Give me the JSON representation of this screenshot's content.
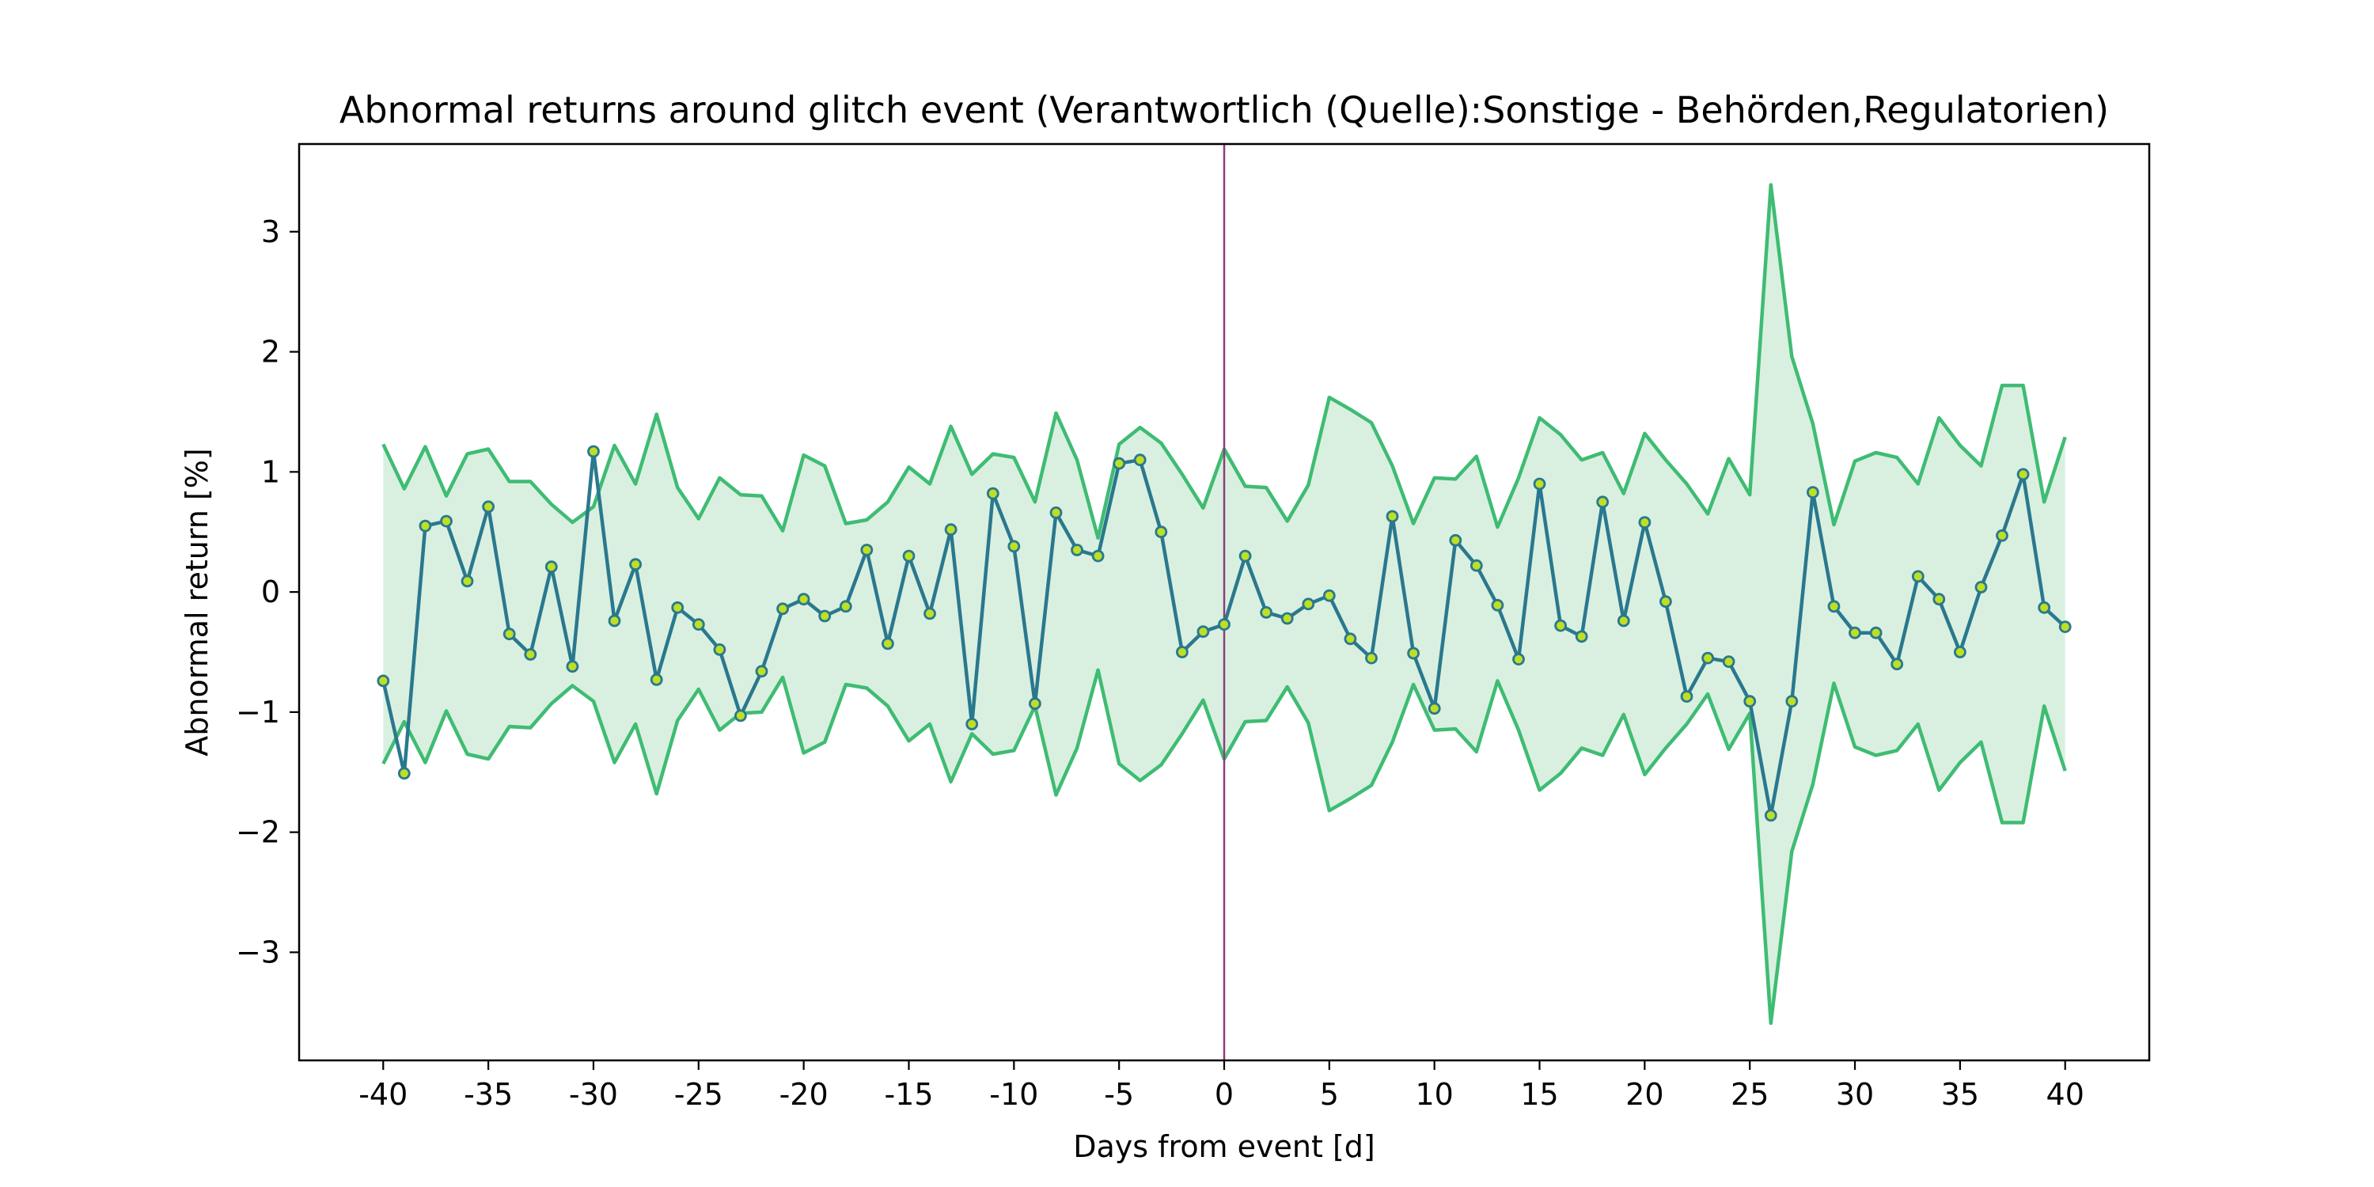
{
  "chart_data": {
    "type": "line",
    "title": "Abnormal returns around glitch event (Verantwortlich (Quelle):Sonstige - Behörden,Regulatorien)",
    "xlabel": "Days from event [d]",
    "ylabel": "Abnormal return [%]",
    "xlim": [
      -44,
      44
    ],
    "ylim": [
      -3.9,
      3.73
    ],
    "xticks": [
      -40,
      -35,
      -30,
      -25,
      -20,
      -15,
      -10,
      -5,
      0,
      5,
      10,
      15,
      20,
      25,
      30,
      35,
      40
    ],
    "yticks": [
      -3,
      -2,
      -1,
      0,
      1,
      2,
      3
    ],
    "event_day": 0,
    "grid": false,
    "legend": "none",
    "colors": {
      "line": "#2a788e",
      "marker_face": "#bddf26",
      "band_line": "#3fbc73",
      "band_fill": "#d9f0e0",
      "event_line": "#8c3e7a",
      "axes": "#000000"
    },
    "x": [
      -40,
      -39,
      -38,
      -37,
      -36,
      -35,
      -34,
      -33,
      -32,
      -31,
      -30,
      -29,
      -28,
      -27,
      -26,
      -25,
      -24,
      -23,
      -22,
      -21,
      -20,
      -19,
      -18,
      -17,
      -16,
      -15,
      -14,
      -13,
      -12,
      -11,
      -10,
      -9,
      -8,
      -7,
      -6,
      -5,
      -4,
      -3,
      -2,
      -1,
      0,
      1,
      2,
      3,
      4,
      5,
      6,
      7,
      8,
      9,
      10,
      11,
      12,
      13,
      14,
      15,
      16,
      17,
      18,
      19,
      20,
      21,
      22,
      23,
      24,
      25,
      26,
      27,
      28,
      29,
      30,
      31,
      32,
      33,
      34,
      35,
      36,
      37,
      38,
      39,
      40
    ],
    "series": [
      {
        "values": [
          -0.74,
          -1.51,
          0.55,
          0.59,
          0.09,
          0.71,
          -0.35,
          -0.52,
          0.21,
          -0.62,
          1.17,
          -0.24,
          0.23,
          -0.73,
          -0.13,
          -0.27,
          -0.48,
          -1.03,
          -0.66,
          -0.14,
          -0.06,
          -0.2,
          -0.12,
          0.35,
          -0.43,
          0.3,
          -0.18,
          0.52,
          -1.1,
          0.82,
          0.38,
          -0.93,
          0.66,
          0.35,
          0.3,
          1.07,
          1.1,
          0.5,
          -0.5,
          -0.33,
          -0.27,
          0.3,
          -0.17,
          -0.22,
          -0.1,
          -0.03,
          -0.39,
          -0.55,
          0.63,
          -0.51,
          -0.97,
          0.43,
          0.22,
          -0.11,
          -0.56,
          0.9,
          -0.28,
          -0.37,
          0.75,
          -0.24,
          0.58,
          -0.08,
          -0.87,
          -0.55,
          -0.58,
          -0.91,
          -1.86,
          -0.91,
          0.83,
          -0.12,
          -0.34,
          -0.34,
          -0.6,
          0.13,
          -0.06,
          -0.5,
          0.04,
          0.47,
          0.98,
          -0.13,
          -0.29
        ]
      }
    ],
    "band": {
      "upper": [
        1.23,
        0.86,
        1.21,
        0.8,
        1.15,
        1.19,
        0.92,
        0.92,
        0.73,
        0.58,
        0.71,
        1.22,
        0.9,
        1.48,
        0.87,
        0.61,
        0.95,
        0.81,
        0.8,
        0.51,
        1.14,
        1.05,
        0.57,
        0.6,
        0.75,
        1.04,
        0.9,
        1.38,
        0.98,
        1.15,
        1.12,
        0.75,
        1.49,
        1.1,
        0.45,
        1.23,
        1.37,
        1.24,
        0.98,
        0.7,
        1.19,
        0.88,
        0.87,
        0.59,
        0.89,
        1.62,
        1.52,
        1.41,
        1.05,
        0.57,
        0.95,
        0.94,
        1.13,
        0.54,
        0.95,
        1.45,
        1.31,
        1.1,
        1.16,
        0.82,
        1.32,
        1.1,
        0.9,
        0.65,
        1.11,
        0.81,
        3.39,
        1.96,
        1.4,
        0.56,
        1.09,
        1.16,
        1.12,
        0.9,
        1.45,
        1.22,
        1.05,
        1.72,
        1.72,
        0.75,
        1.29
      ],
      "lower": [
        -1.43,
        -1.08,
        -1.42,
        -0.99,
        -1.35,
        -1.39,
        -1.12,
        -1.13,
        -0.93,
        -0.78,
        -0.91,
        -1.42,
        -1.1,
        -1.68,
        -1.07,
        -0.81,
        -1.15,
        -1.01,
        -1.0,
        -0.71,
        -1.34,
        -1.25,
        -0.77,
        -0.8,
        -0.95,
        -1.24,
        -1.1,
        -1.58,
        -1.18,
        -1.35,
        -1.32,
        -0.95,
        -1.69,
        -1.3,
        -0.65,
        -1.43,
        -1.57,
        -1.44,
        -1.18,
        -0.9,
        -1.39,
        -1.08,
        -1.07,
        -0.79,
        -1.09,
        -1.82,
        -1.72,
        -1.61,
        -1.25,
        -0.77,
        -1.15,
        -1.14,
        -1.33,
        -0.74,
        -1.15,
        -1.65,
        -1.51,
        -1.3,
        -1.36,
        -1.02,
        -1.52,
        -1.3,
        -1.1,
        -0.85,
        -1.31,
        -1.01,
        -3.59,
        -2.16,
        -1.6,
        -0.76,
        -1.29,
        -1.36,
        -1.32,
        -1.1,
        -1.65,
        -1.42,
        -1.25,
        -1.92,
        -1.92,
        -0.95,
        -1.49
      ]
    }
  }
}
